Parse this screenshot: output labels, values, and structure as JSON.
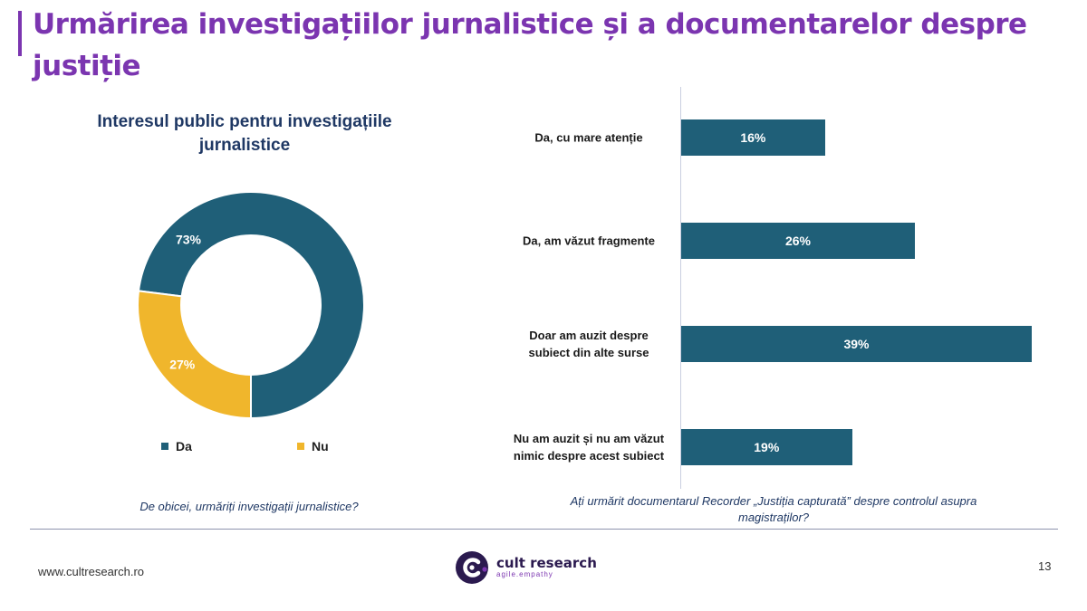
{
  "header": {
    "title": "Urmărirea investigațiilor jurnalistice și a documentarelor despre justiție"
  },
  "chart_data": [
    {
      "type": "pie",
      "subtype": "donut",
      "title": "Interesul public pentru investigațiile jurnalistice",
      "question": "De obicei, urmăriți investigații jurnalistice?",
      "categories": [
        "Da",
        "Nu"
      ],
      "values": [
        73,
        27
      ],
      "value_labels": [
        "73%",
        "27%"
      ],
      "colors": [
        "#1f5f78",
        "#f0b62c"
      ],
      "legend": "bottom"
    },
    {
      "type": "bar",
      "orientation": "horizontal",
      "question": "Ați urmărit documentarul Recorder „Justiția capturată” despre controlul asupra magistraților?",
      "categories": [
        "Da, cu mare atenție",
        "Da, am văzut fragmente",
        "Doar am auzit despre subiect din alte surse",
        "Nu am auzit și nu am văzut nimic despre acest subiect"
      ],
      "values": [
        16,
        26,
        39,
        19
      ],
      "value_labels": [
        "16%",
        "26%",
        "39%",
        "19%"
      ],
      "xlim": [
        0,
        39
      ],
      "color": "#1f5f78"
    }
  ],
  "footer": {
    "website": "www.cultresearch.ro",
    "brand_name": "cult research",
    "brand_tagline": "agile.empathy",
    "page_number": "13"
  }
}
